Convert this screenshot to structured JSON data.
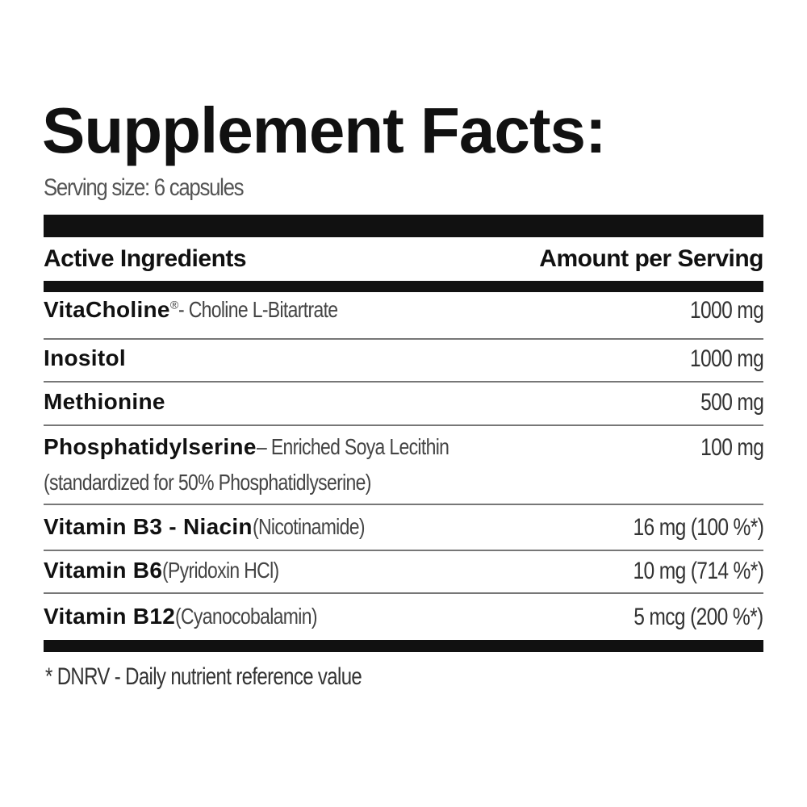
{
  "title": "Supplement Facts:",
  "serving_size": "Serving size: 6 capsules",
  "header": {
    "ingredients": "Active Ingredients",
    "amount": "Amount per Serving"
  },
  "rows": [
    {
      "name": "VitaCholine",
      "mark": "®",
      "detail": " - Choline L-Bitartrate",
      "amount": "1000 mg"
    },
    {
      "name": "Inositol",
      "detail": "",
      "amount": "1000 mg"
    },
    {
      "name": "Methionine",
      "detail": "",
      "amount": "500 mg"
    },
    {
      "name": "Phosphatidylserine",
      "detail": " – Enriched Soya Lecithin",
      "subline": "(standardized for 50% Phosphatidlyserine)",
      "amount": "100 mg"
    },
    {
      "name": "Vitamin B3 - Niacin",
      "detail": " (Nicotinamide)",
      "amount": "16 mg (100 %*)"
    },
    {
      "name": "Vitamin B6",
      "detail": " (Pyridoxin HCl)",
      "amount": "10 mg (714 %*)"
    },
    {
      "name": "Vitamin B12",
      "detail": " (Cyanocobalamin)",
      "amount": "5 mcg (200 %*)"
    }
  ],
  "footnote": "*  DNRV - Daily nutrient reference value"
}
